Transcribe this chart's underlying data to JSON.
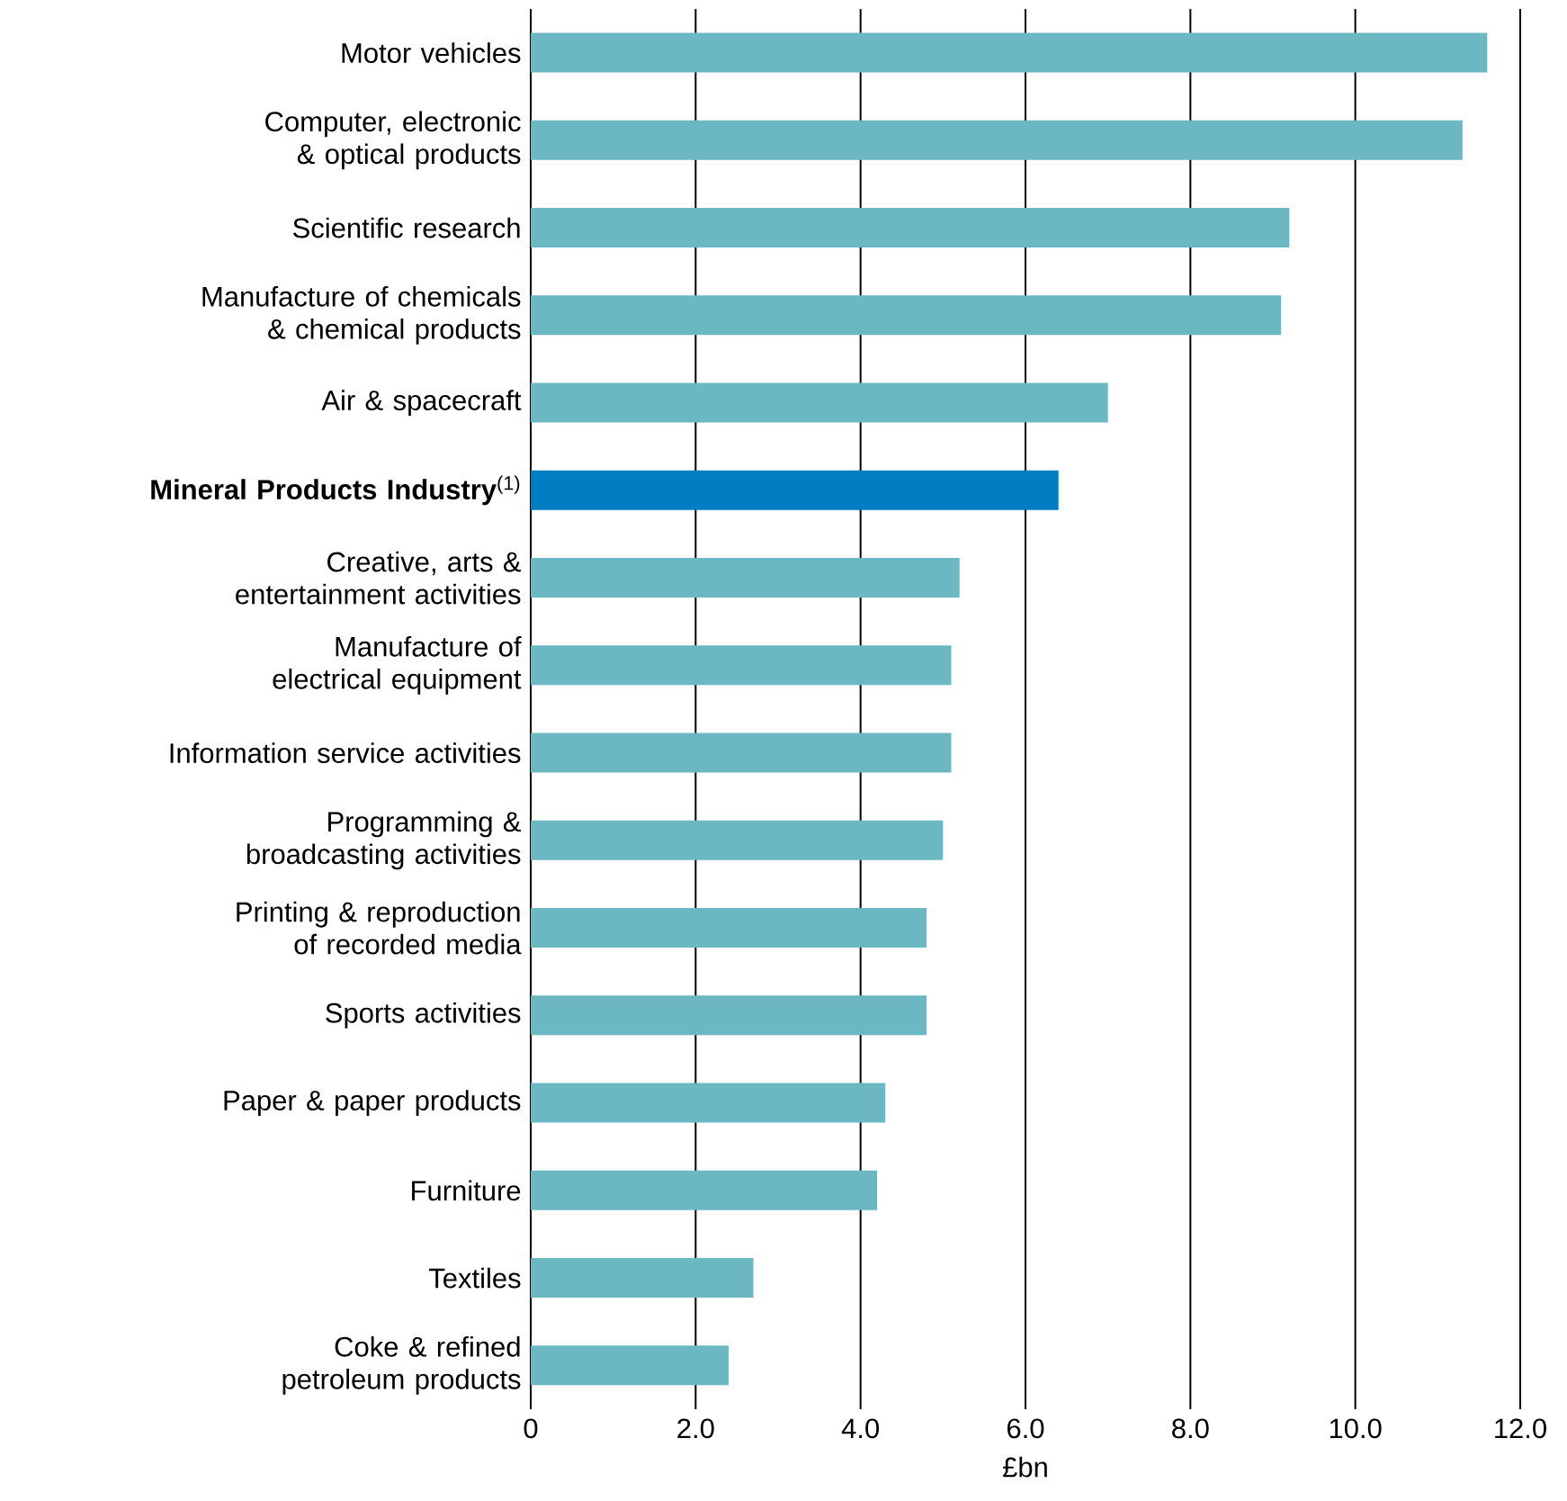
{
  "chart_data": {
    "type": "bar",
    "orientation": "horizontal",
    "categories": [
      "Motor vehicles",
      "Computer, electronic & optical products",
      "Scientific research",
      "Manufacture of chemicals & chemical products",
      "Air & spacecraft",
      "**Mineral Products Industry**$^{(1)}$",
      "Creative, arts & entertainment activities",
      "Manufacture of electrical equipment",
      "Information service activities",
      "Programming & broadcasting activities",
      "Printing & reproduction of recorded media",
      "Sports activities",
      "Paper & paper products",
      "Furniture",
      "Textiles",
      "Coke & refined petroleum products"
    ],
    "values": [
      11.6,
      11.3,
      9.2,
      9.1,
      7.0,
      6.4,
      5.2,
      5.1,
      5.1,
      5.0,
      4.8,
      4.8,
      4.3,
      4.2,
      2.7,
      2.4
    ],
    "colors": [
      "#6bb8c3",
      "#6bb8c3",
      "#6bb8c3",
      "#6bb8c3",
      "#6bb8c3",
      "#007dc3",
      "#6bb8c3",
      "#6bb8c3",
      "#6bb8c3",
      "#6bb8c3",
      "#6bb8c3",
      "#6bb8c3",
      "#6bb8c3",
      "#6bb8c3",
      "#6bb8c3",
      "#6bb8c3"
    ],
    "xlabel": "£bn",
    "xlim": [
      0,
      12.0
    ],
    "xticks": [
      0,
      {
        "value": 2,
        "label": "2.0"
      },
      {
        "value": 4,
        "label": "4.0"
      },
      {
        "value": 6,
        "label": "6.0"
      },
      {
        "value": 8,
        "label": "8.0"
      },
      {
        "value": 10,
        "label": "10.0"
      },
      {
        "value": 12,
        "label": "12.0"
      }
    ],
    "grid": "x"
  }
}
